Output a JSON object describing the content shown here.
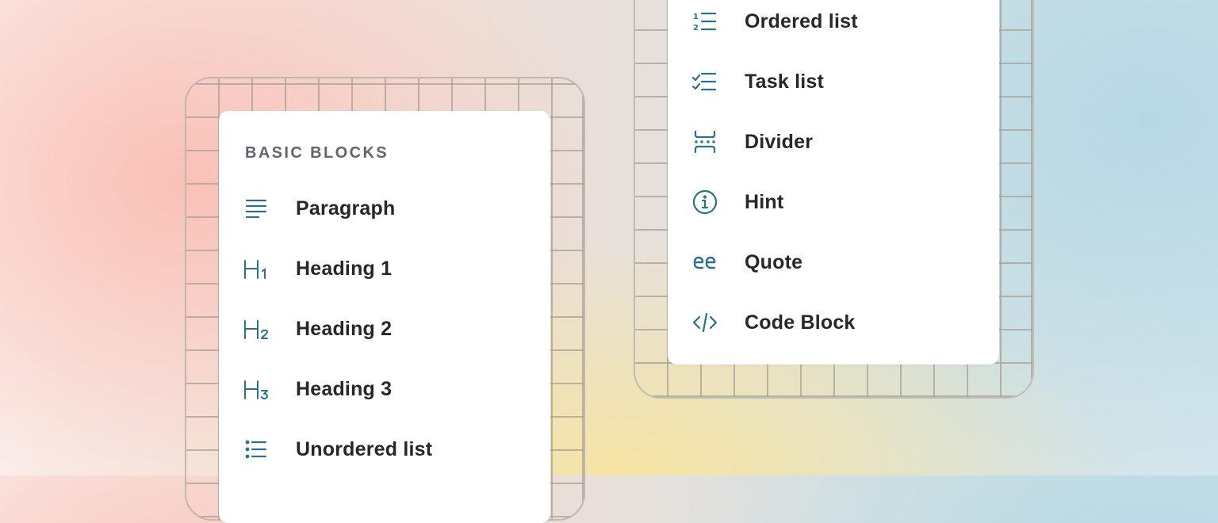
{
  "accent_color": "#2e7187",
  "left_menu": {
    "section_title": "BASIC BLOCKS",
    "items": [
      {
        "label": "Paragraph",
        "icon": "paragraph-icon"
      },
      {
        "label": "Heading 1",
        "icon": "heading-1-icon"
      },
      {
        "label": "Heading 2",
        "icon": "heading-2-icon"
      },
      {
        "label": "Heading 3",
        "icon": "heading-3-icon"
      },
      {
        "label": "Unordered list",
        "icon": "unordered-list-icon"
      }
    ]
  },
  "right_menu": {
    "items": [
      {
        "label": "Ordered list",
        "icon": "ordered-list-icon"
      },
      {
        "label": "Task list",
        "icon": "task-list-icon"
      },
      {
        "label": "Divider",
        "icon": "divider-icon"
      },
      {
        "label": "Hint",
        "icon": "info-icon"
      },
      {
        "label": "Quote",
        "icon": "quote-icon"
      },
      {
        "label": "Code Block",
        "icon": "code-icon"
      }
    ]
  }
}
